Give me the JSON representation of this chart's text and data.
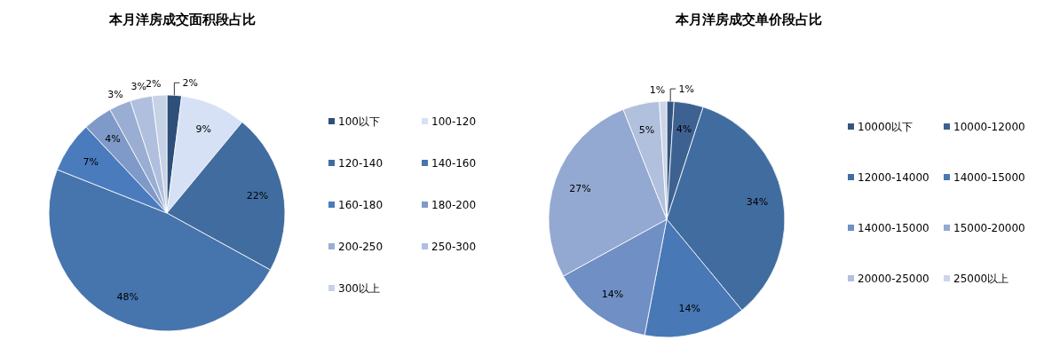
{
  "chart_data": [
    {
      "type": "pie",
      "title": "本月洋房成交面积段占比",
      "categories": [
        "100以下",
        "100-120",
        "120-140",
        "140-160",
        "160-180",
        "180-200",
        "200-250",
        "250-300",
        "300以上"
      ],
      "values": [
        2,
        9,
        22,
        48,
        7,
        4,
        3,
        3,
        2
      ],
      "colors": [
        "#2e4f7a",
        "#d6e1f5",
        "#416c9f",
        "#4674ad",
        "#4a7bbd",
        "#7f9ac8",
        "#9aaed3",
        "#b0bfdd",
        "#c8d2e6"
      ],
      "value_labels": [
        "2%",
        "9%",
        "22%",
        "48%",
        "7%",
        "4%",
        "3%",
        "3%",
        "2%"
      ],
      "legend": "right"
    },
    {
      "type": "pie",
      "title": "本月洋房成交单价段占比",
      "categories": [
        "10000以下",
        "10000-12000",
        "12000-14000",
        "14000-15000",
        "14000-15000",
        "15000-20000",
        "20000-25000",
        "25000以上"
      ],
      "values": [
        1,
        4,
        34,
        14,
        14,
        27,
        5,
        1
      ],
      "colors": [
        "#34557f",
        "#3d6292",
        "#416c9f",
        "#4878b5",
        "#6f8fc5",
        "#93a9d1",
        "#b1c0dd",
        "#ccd5e8"
      ],
      "value_labels": [
        "1%",
        "4%",
        "34%",
        "14%",
        "14%",
        "27%",
        "5%",
        "1%"
      ],
      "legend": "right"
    }
  ]
}
